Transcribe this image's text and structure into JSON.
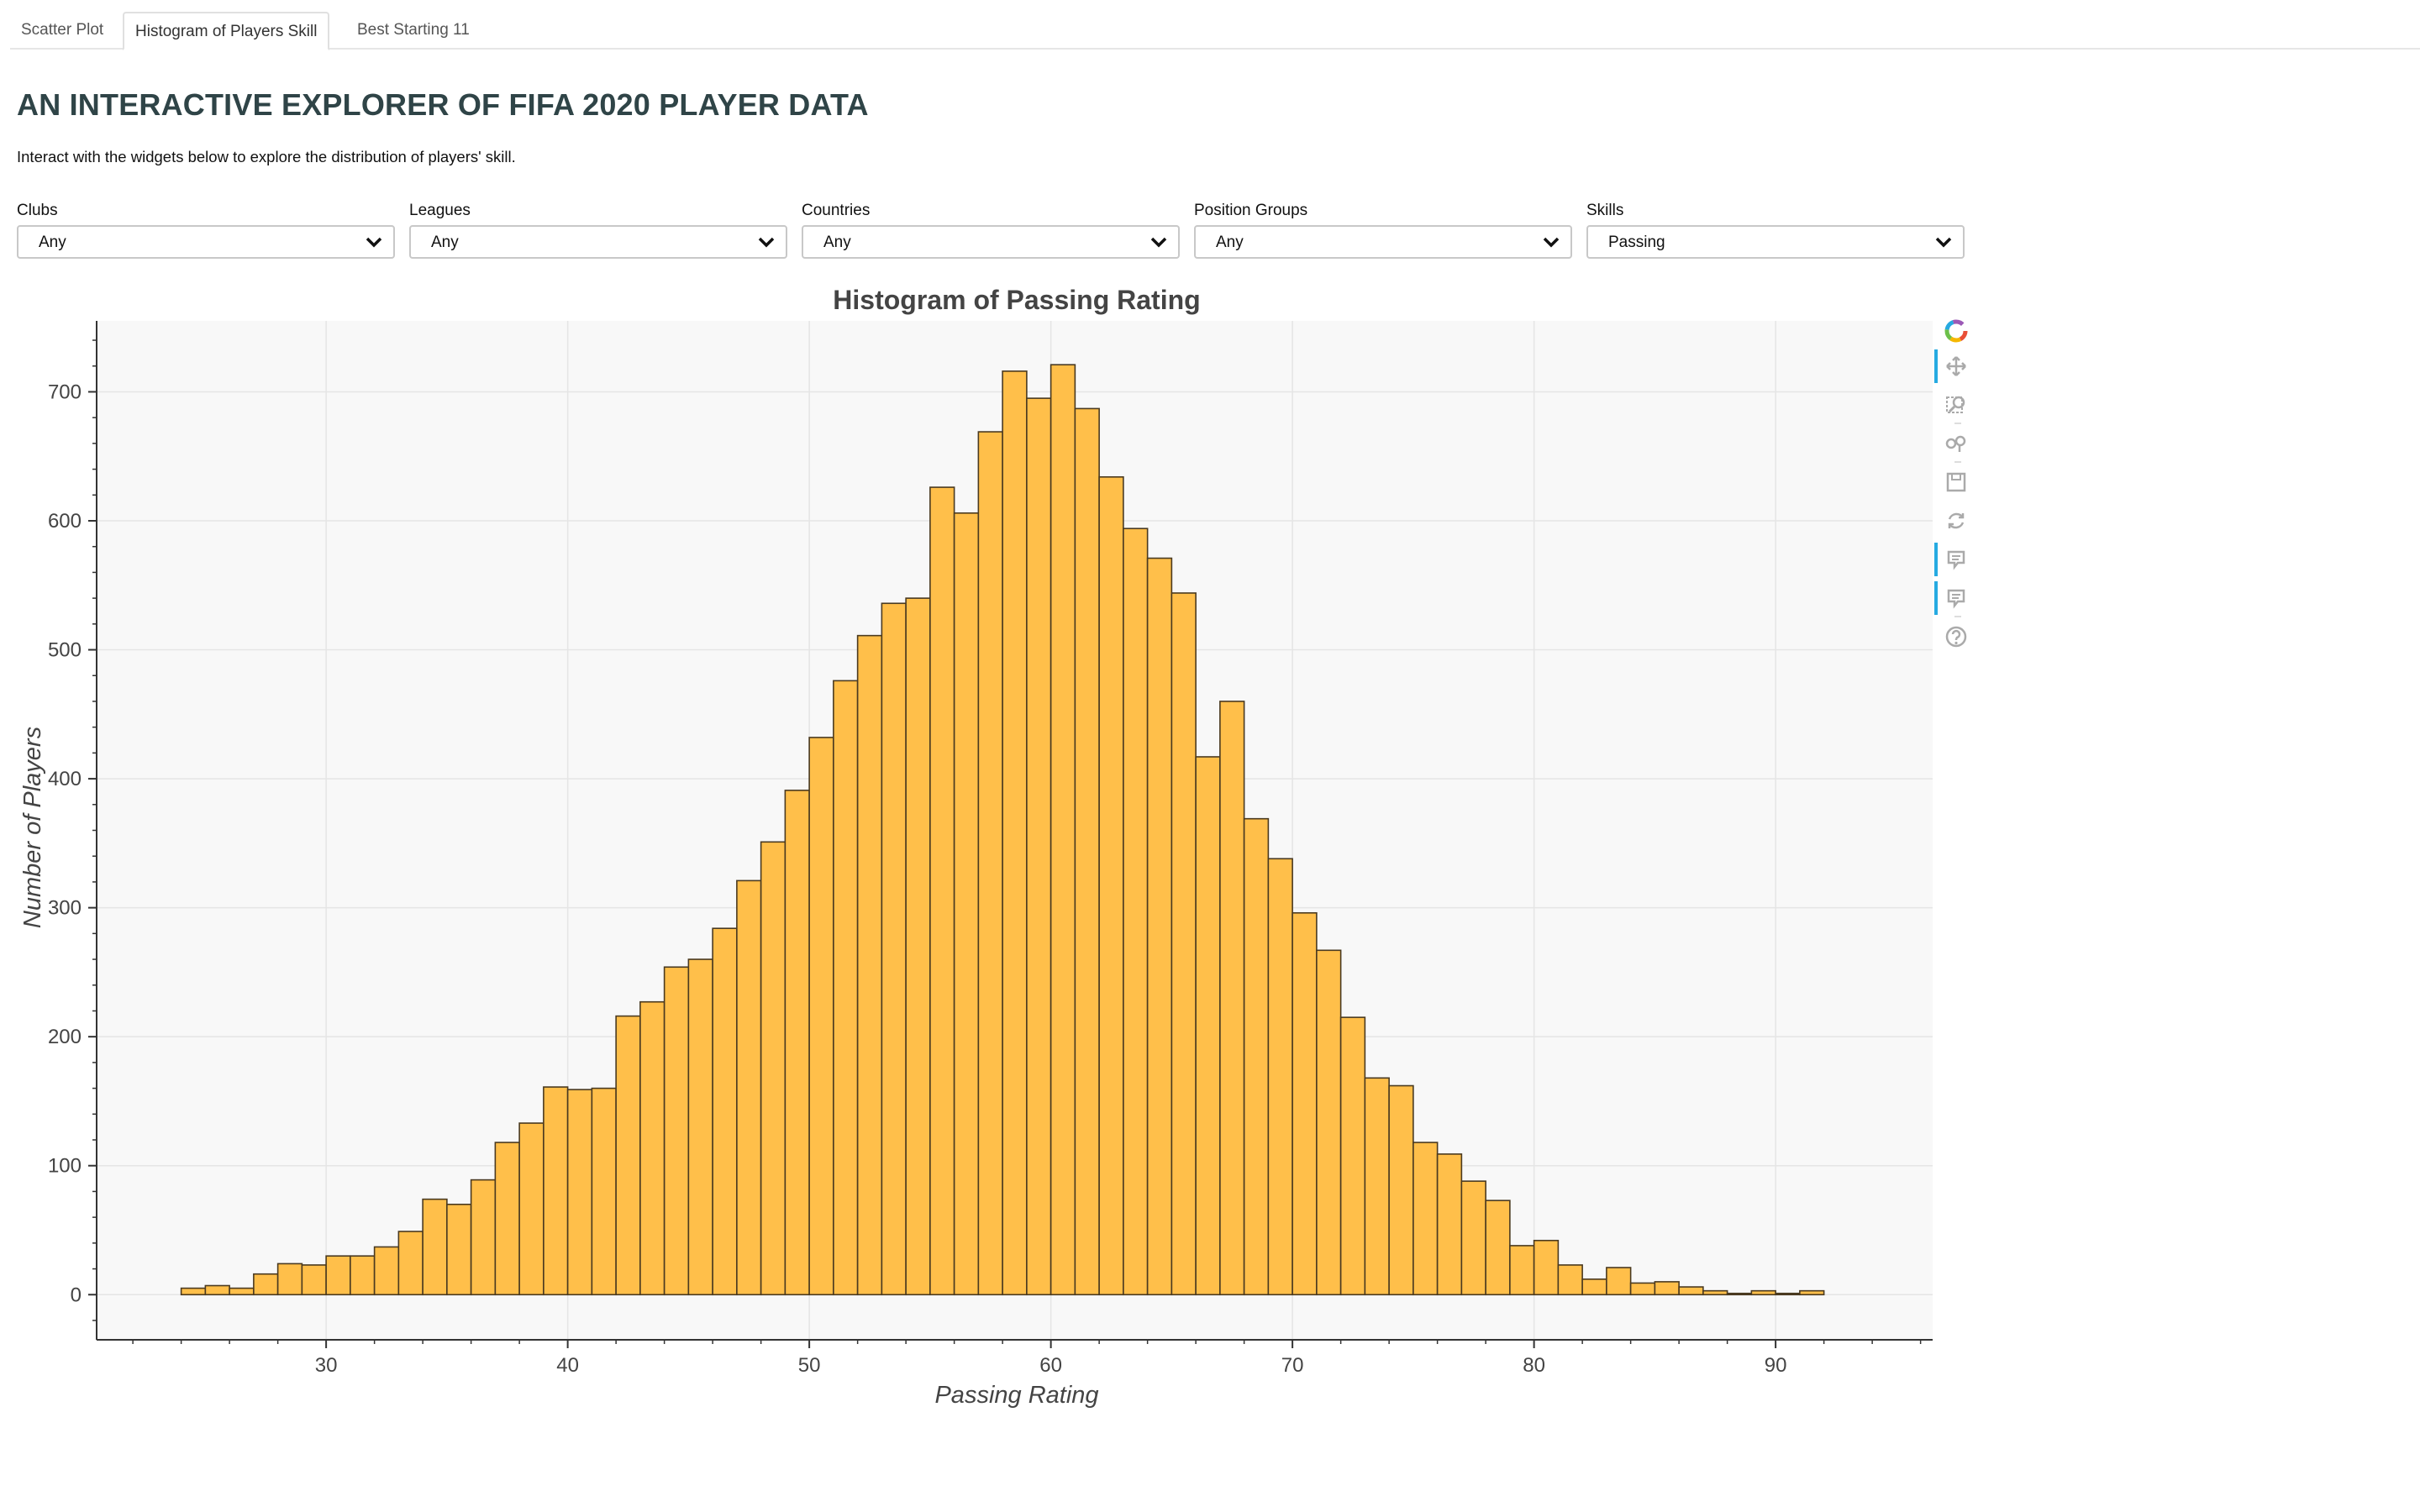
{
  "tabs": [
    {
      "label": "Scatter Plot",
      "active": false
    },
    {
      "label": "Histogram of Players Skill",
      "active": true
    },
    {
      "label": "Best Starting 11",
      "active": false
    }
  ],
  "page": {
    "title": "AN INTERACTIVE EXPLORER OF FIFA 2020 PLAYER DATA",
    "subtitle": "Interact with the widgets below to explore the distribution of players' skill."
  },
  "filters": [
    {
      "label": "Clubs",
      "value": "Any"
    },
    {
      "label": "Leagues",
      "value": "Any"
    },
    {
      "label": "Countries",
      "value": "Any"
    },
    {
      "label": "Position Groups",
      "value": "Any"
    },
    {
      "label": "Skills",
      "value": "Passing"
    }
  ],
  "toolbar": {
    "tools": [
      "bokeh-logo-icon",
      "pan-icon",
      "box-zoom-icon",
      "wheel-zoom-icon",
      "save-icon",
      "reset-icon",
      "hover-icon",
      "hover-icon",
      "help-icon"
    ]
  },
  "colors": {
    "bar_fill": "#ffbf4a",
    "bar_stroke": "#4a3a20",
    "plot_bg": "#f8f8f8",
    "grid": "#e5e5e5",
    "title": "#2f4447",
    "tool_active": "#26aae1"
  },
  "chart_data": {
    "type": "bar",
    "title": "Histogram of Passing Rating",
    "xlabel": "Passing Rating",
    "ylabel": "Number of Players",
    "xlim": [
      20.5,
      96.5
    ],
    "ylim": [
      -35,
      755
    ],
    "xticks": [
      30,
      40,
      50,
      60,
      70,
      80,
      90
    ],
    "yticks": [
      0,
      100,
      200,
      300,
      400,
      500,
      600,
      700
    ],
    "bin_start": 24,
    "bin_width": 1,
    "values": [
      5,
      7,
      5,
      16,
      24,
      23,
      30,
      30,
      37,
      49,
      74,
      70,
      89,
      118,
      133,
      161,
      159,
      160,
      216,
      227,
      254,
      260,
      284,
      321,
      351,
      391,
      432,
      476,
      511,
      536,
      540,
      626,
      606,
      669,
      716,
      695,
      721,
      687,
      634,
      594,
      571,
      544,
      417,
      460,
      369,
      338,
      296,
      267,
      215,
      168,
      162,
      118,
      109,
      88,
      73,
      38,
      42,
      23,
      12,
      21,
      9,
      10,
      6,
      3,
      1,
      3,
      1,
      3
    ],
    "grid": true,
    "legend": "none"
  }
}
